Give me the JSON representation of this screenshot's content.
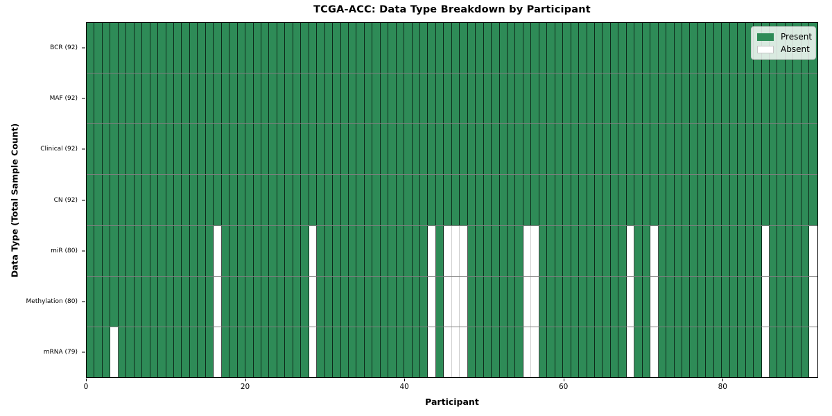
{
  "chart_data": {
    "type": "heatmap",
    "title": "TCGA-ACC: Data Type Breakdown by Participant",
    "xlabel": "Participant",
    "ylabel": "Data Type (Total Sample Count)",
    "n_participants": 92,
    "x_ticks": [
      0,
      20,
      40,
      60,
      80
    ],
    "grid": "cell-edges",
    "legend_position": "upper-right",
    "colors": {
      "present": "#2e8b57",
      "absent": "#ffffff",
      "cell_edge_present": "rgba(0,0,0,0.7)",
      "cell_edge_absent": "#cfcfcf",
      "row_divider": "rgba(0,0,0,0.5)",
      "spine": "#000000"
    },
    "legend": [
      {
        "label": "Present",
        "color": "#2e8b57"
      },
      {
        "label": "Absent",
        "color": "#ffffff"
      }
    ],
    "rows": [
      {
        "label": "BCR (92)",
        "present_count": 92,
        "absent_participants": []
      },
      {
        "label": "MAF (92)",
        "present_count": 92,
        "absent_participants": []
      },
      {
        "label": "Clinical (92)",
        "present_count": 92,
        "absent_participants": []
      },
      {
        "label": "CN (92)",
        "present_count": 92,
        "absent_participants": []
      },
      {
        "label": "miR (80)",
        "present_count": 80,
        "absent_participants": [
          16,
          28,
          43,
          45,
          46,
          47,
          55,
          56,
          68,
          71,
          85,
          91
        ]
      },
      {
        "label": "Methylation (80)",
        "present_count": 80,
        "absent_participants": [
          16,
          28,
          43,
          45,
          46,
          47,
          55,
          56,
          68,
          71,
          85,
          91
        ]
      },
      {
        "label": "mRNA (79)",
        "present_count": 79,
        "absent_participants": [
          3,
          16,
          28,
          43,
          45,
          46,
          47,
          55,
          56,
          68,
          71,
          85,
          91
        ]
      }
    ]
  }
}
